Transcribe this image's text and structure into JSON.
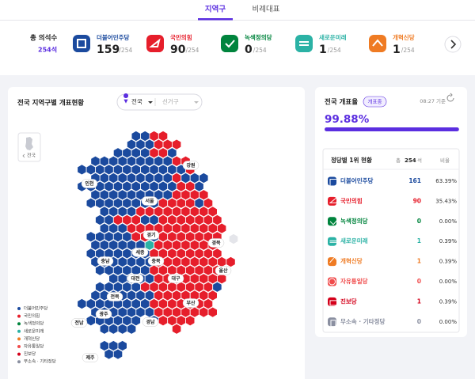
{
  "tabs": {
    "items": [
      "지역구",
      "비례대표"
    ],
    "active": 0
  },
  "summary": {
    "label": "총 의석수",
    "total": "254석",
    "parties": [
      {
        "name": "더불어민주당",
        "seats": "159",
        "total": "/254",
        "color": "#1b4a9e"
      },
      {
        "name": "국민의힘",
        "seats": "90",
        "total": "/254",
        "color": "#e61e2b"
      },
      {
        "name": "녹색정의당",
        "seats": "0",
        "total": "/254",
        "color": "#00843d"
      },
      {
        "name": "새로운미래",
        "seats": "1",
        "total": "/254",
        "color": "#2bb2a5"
      },
      {
        "name": "개혁신당",
        "seats": "1",
        "total": "/254",
        "color": "#ef7b23"
      }
    ]
  },
  "map": {
    "title": "전국 지역구별 개표현황",
    "selector": [
      "전국",
      "선거구"
    ],
    "back": "전국",
    "regions": [
      "강원",
      "인천",
      "서울",
      "경기",
      "세종",
      "충북",
      "충남",
      "경북",
      "대전",
      "울산",
      "대구",
      "전북",
      "부산",
      "광주",
      "경남",
      "전남",
      "제주"
    ],
    "legend": [
      {
        "name": "더불어민주당",
        "color": "#1b4a9e"
      },
      {
        "name": "국민의힘",
        "color": "#e61e2b"
      },
      {
        "name": "녹색정의당",
        "color": "#00843d"
      },
      {
        "name": "새로운미래",
        "color": "#2bb2a5"
      },
      {
        "name": "개혁신당",
        "color": "#ef7b23"
      },
      {
        "name": "자유통일당",
        "color": "#f04b4b"
      },
      {
        "name": "진보당",
        "color": "#d4001a"
      },
      {
        "name": "무소속 · 기타정당",
        "color": "#8a8fa0"
      }
    ]
  },
  "progress": {
    "title": "전국 개표율",
    "badge": "개표중",
    "time": "08:27 기준",
    "rate": {
      "value": 99.88,
      "label": "99.88%"
    }
  },
  "table": {
    "title": "정당별 1위 현황",
    "total_prefix": "총",
    "total": "254",
    "total_suffix": "석",
    "ratio_header": "비율",
    "rows": [
      {
        "name": "더불어민주당",
        "seats": "161",
        "ratio": "63.39%",
        "color": "#1b4a9e"
      },
      {
        "name": "국민의힘",
        "seats": "90",
        "ratio": "35.43%",
        "color": "#e61e2b"
      },
      {
        "name": "녹색정의당",
        "seats": "0",
        "ratio": "0.00%",
        "color": "#00843d"
      },
      {
        "name": "새로운미래",
        "seats": "1",
        "ratio": "0.39%",
        "color": "#2bb2a5"
      },
      {
        "name": "개혁신당",
        "seats": "1",
        "ratio": "0.39%",
        "color": "#ef7b23"
      },
      {
        "name": "자유통일당",
        "seats": "0",
        "ratio": "0.00%",
        "color": "#f04b4b"
      },
      {
        "name": "진보당",
        "seats": "1",
        "ratio": "0.39%",
        "color": "#d4001a"
      },
      {
        "name": "무소속 · 기타정당",
        "seats": "0",
        "ratio": "0.00%",
        "color": "#8a8fa0"
      }
    ]
  }
}
